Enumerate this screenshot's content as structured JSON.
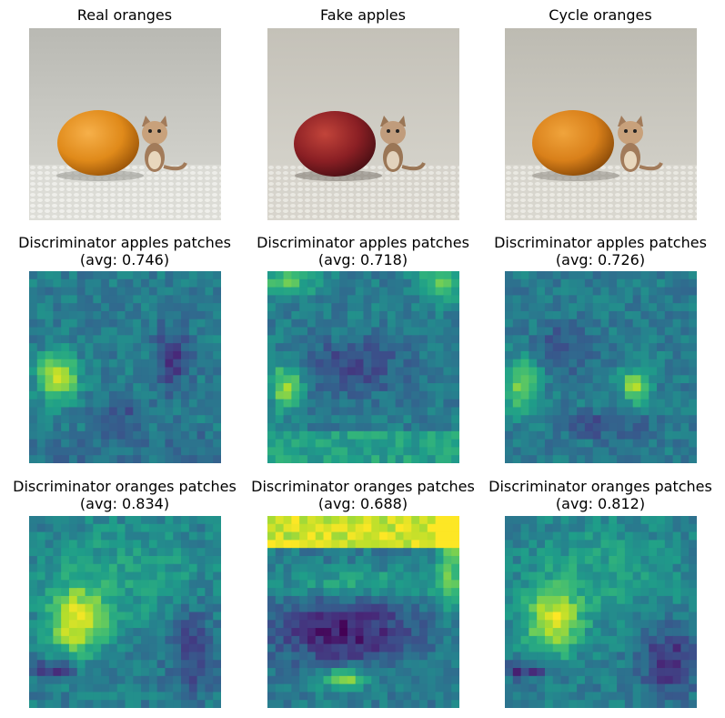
{
  "rows": [
    {
      "cells": [
        {
          "title": "Real oranges",
          "subtitle": ""
        },
        {
          "title": "Fake apples",
          "subtitle": ""
        },
        {
          "title": "Cycle oranges",
          "subtitle": ""
        }
      ]
    },
    {
      "cells": [
        {
          "title": "Discriminator apples patches",
          "subtitle": "(avg: 0.746)"
        },
        {
          "title": "Discriminator apples patches",
          "subtitle": "(avg: 0.718)"
        },
        {
          "title": "Discriminator apples patches",
          "subtitle": "(avg: 0.726)"
        }
      ]
    },
    {
      "cells": [
        {
          "title": "Discriminator oranges patches",
          "subtitle": "(avg: 0.834)"
        },
        {
          "title": "Discriminator oranges patches",
          "subtitle": "(avg: 0.688)"
        },
        {
          "title": "Discriminator oranges patches",
          "subtitle": "(avg: 0.812)"
        }
      ]
    }
  ],
  "colors": {
    "colormap": "viridis",
    "orange_fruit": "#e08a1a",
    "apple_fruit": "#8a1f24",
    "background_wall": "#c9c9c4",
    "tabletop": "#dcdcd6",
    "kitten_toy": "#a27b5a"
  }
}
